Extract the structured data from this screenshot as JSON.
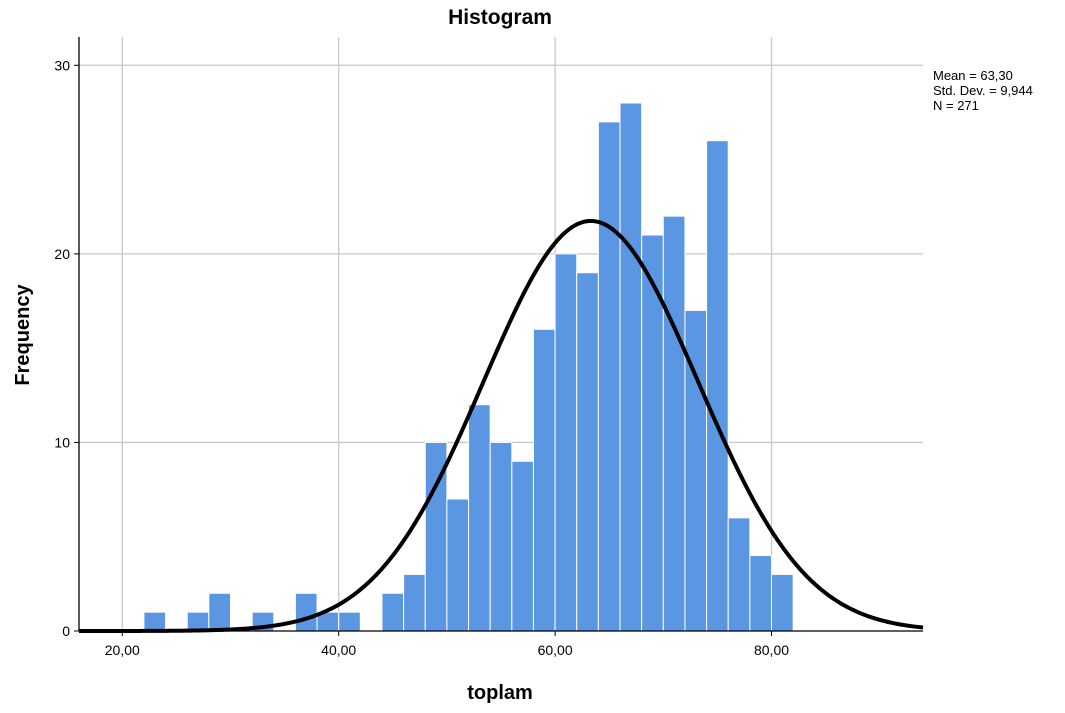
{
  "chart_data": {
    "type": "bar",
    "title": "Histogram",
    "xlabel": "toplam",
    "ylabel": "Frequency",
    "xlim": [
      16,
      94
    ],
    "ylim": [
      0,
      31.5
    ],
    "x_ticks": [
      {
        "value": 20,
        "label": "20,00"
      },
      {
        "value": 40,
        "label": "40,00"
      },
      {
        "value": 60,
        "label": "60,00"
      },
      {
        "value": 80,
        "label": "80,00"
      }
    ],
    "y_ticks": [
      {
        "value": 0,
        "label": "0"
      },
      {
        "value": 10,
        "label": "10"
      },
      {
        "value": 20,
        "label": "20"
      },
      {
        "value": 30,
        "label": "30"
      }
    ],
    "grid": true,
    "bin_width": 2,
    "bins": [
      {
        "start": 22,
        "count": 1
      },
      {
        "start": 24,
        "count": 0
      },
      {
        "start": 26,
        "count": 1
      },
      {
        "start": 28,
        "count": 2
      },
      {
        "start": 30,
        "count": 0
      },
      {
        "start": 32,
        "count": 1
      },
      {
        "start": 34,
        "count": 0
      },
      {
        "start": 36,
        "count": 2
      },
      {
        "start": 38,
        "count": 1
      },
      {
        "start": 40,
        "count": 1
      },
      {
        "start": 42,
        "count": 0
      },
      {
        "start": 44,
        "count": 2
      },
      {
        "start": 46,
        "count": 3
      },
      {
        "start": 48,
        "count": 10
      },
      {
        "start": 50,
        "count": 7
      },
      {
        "start": 52,
        "count": 12
      },
      {
        "start": 54,
        "count": 10
      },
      {
        "start": 56,
        "count": 9
      },
      {
        "start": 58,
        "count": 16
      },
      {
        "start": 60,
        "count": 20
      },
      {
        "start": 62,
        "count": 19
      },
      {
        "start": 64,
        "count": 27
      },
      {
        "start": 66,
        "count": 28
      },
      {
        "start": 68,
        "count": 21
      },
      {
        "start": 70,
        "count": 22
      },
      {
        "start": 72,
        "count": 17
      },
      {
        "start": 74,
        "count": 26
      },
      {
        "start": 76,
        "count": 6
      },
      {
        "start": 78,
        "count": 4
      },
      {
        "start": 80,
        "count": 3
      }
    ],
    "normal_curve": {
      "mean": 63.3,
      "std": 9.944,
      "n": 271
    },
    "stats_text": [
      "Mean = 63,30",
      "Std. Dev. = 9,944",
      "N = 271"
    ],
    "colors": {
      "bar": "#5b96e3",
      "bar_edge": "#ffffff",
      "curve": "#000000",
      "grid": "#c8c8c8",
      "axis": "#000000"
    }
  }
}
